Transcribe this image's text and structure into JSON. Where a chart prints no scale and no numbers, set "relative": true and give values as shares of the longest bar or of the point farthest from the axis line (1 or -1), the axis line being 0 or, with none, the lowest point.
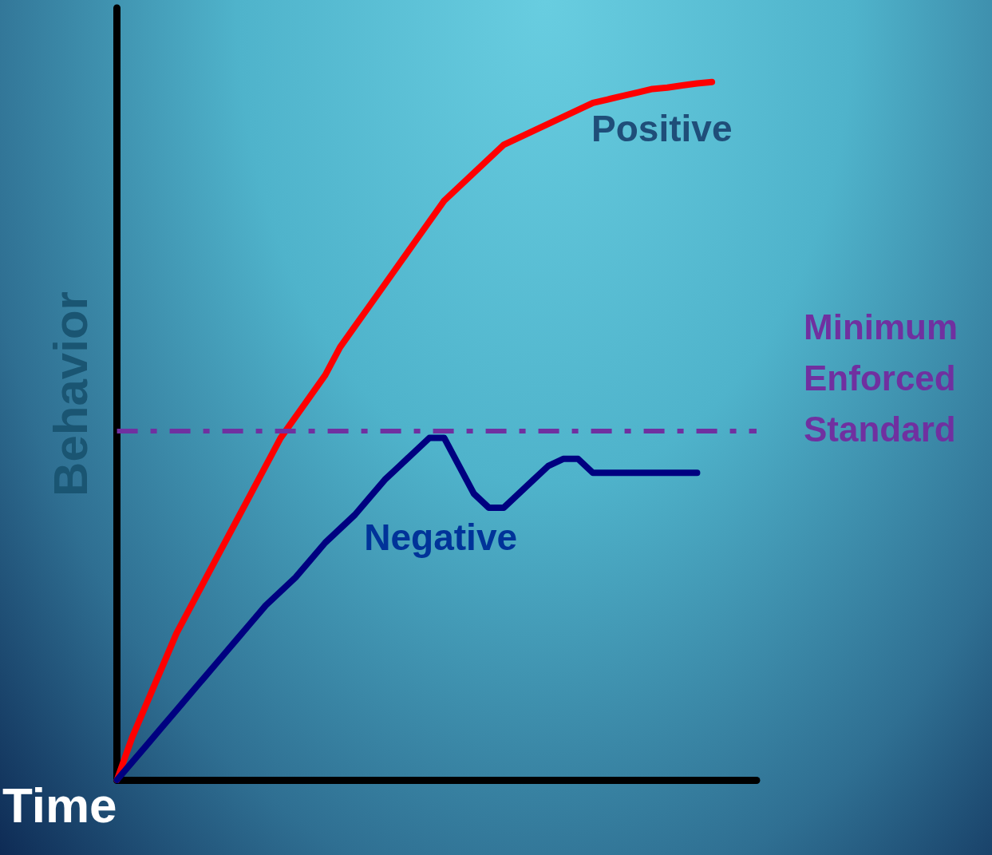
{
  "chart_data": {
    "type": "line",
    "relative": true,
    "xlabel": "Time",
    "ylabel": "Behavior",
    "categories": [
      null,
      null,
      null,
      null,
      null,
      null,
      null,
      null,
      null,
      null,
      null,
      null,
      null,
      null,
      null,
      null,
      null,
      null,
      null,
      null,
      null,
      null,
      null,
      null,
      null,
      null,
      null,
      null,
      null,
      null,
      null,
      null,
      null,
      null,
      null,
      null,
      null,
      null,
      null,
      null,
      null,
      null,
      null,
      null
    ],
    "series": [
      {
        "name": "Positive",
        "color": "#ff0000",
        "values": [
          0,
          0.06,
          0.11,
          0.16,
          0.21,
          0.25,
          0.29,
          0.33,
          0.37,
          0.41,
          0.45,
          0.49,
          0.52,
          0.55,
          0.58,
          0.62,
          0.65,
          0.68,
          0.71,
          0.74,
          0.77,
          0.8,
          0.83,
          0.85,
          0.87,
          0.89,
          0.91,
          0.92,
          0.93,
          0.94,
          0.95,
          0.96,
          0.97,
          0.975,
          0.98,
          0.985,
          0.99,
          0.992,
          0.995,
          0.998,
          1,
          null,
          null,
          null
        ]
      },
      {
        "name": "Negative",
        "color": "#000080",
        "values": [
          0,
          0.025,
          0.05,
          0.075,
          0.1,
          0.125,
          0.15,
          0.175,
          0.2,
          0.225,
          0.25,
          0.27,
          0.29,
          0.315,
          0.34,
          0.36,
          0.38,
          0.405,
          0.43,
          0.45,
          0.47,
          0.49,
          0.49,
          0.45,
          0.41,
          0.39,
          0.39,
          0.41,
          0.43,
          0.45,
          0.46,
          0.46,
          0.44,
          0.44,
          0.44,
          0.44,
          0.44,
          0.44,
          0.44,
          0.44,
          null,
          null,
          null,
          null
        ]
      }
    ],
    "ref_lines": [
      {
        "axis": "y",
        "value": 0.5,
        "label": "Minimum Enforced Standard",
        "color": "#7030a0",
        "line_style": "dashed"
      }
    ],
    "legend": false,
    "grid": false,
    "marker": "none",
    "line_style": "solid"
  }
}
